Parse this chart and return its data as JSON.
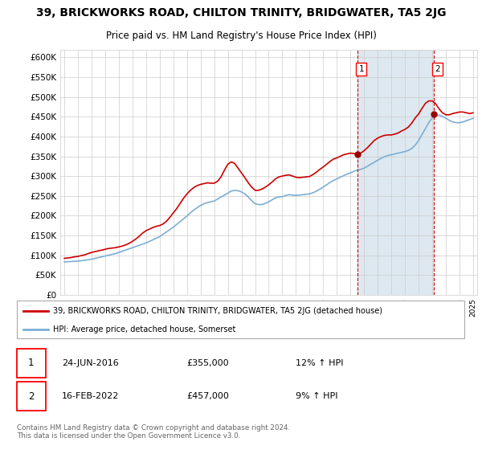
{
  "title": "39, BRICKWORKS ROAD, CHILTON TRINITY, BRIDGWATER, TA5 2JG",
  "subtitle": "Price paid vs. HM Land Registry's House Price Index (HPI)",
  "title_fontsize": 10,
  "subtitle_fontsize": 8.5,
  "ylim": [
    0,
    620000
  ],
  "yticks": [
    0,
    50000,
    100000,
    150000,
    200000,
    250000,
    300000,
    350000,
    400000,
    450000,
    500000,
    550000,
    600000
  ],
  "background_color": "#ffffff",
  "chart_bg_color": "#ffffff",
  "grid_color": "#cccccc",
  "hpi_color": "#7bafd4",
  "price_color": "#cc0000",
  "marker_color": "#990000",
  "dashed_color": "#cc0000",
  "shade_color": "#dde8f0",
  "legend_line1": "39, BRICKWORKS ROAD, CHILTON TRINITY, BRIDGWATER, TA5 2JG (detached house)",
  "legend_line2": "HPI: Average price, detached house, Somerset",
  "note1_date": "24-JUN-2016",
  "note1_price": "£355,000",
  "note1_hpi": "12% ↑ HPI",
  "note2_date": "16-FEB-2022",
  "note2_price": "£457,000",
  "note2_hpi": "9% ↑ HPI",
  "footer": "Contains HM Land Registry data © Crown copyright and database right 2024.\nThis data is licensed under the Open Government Licence v3.0.",
  "sale1_year": 2016.5,
  "sale1_price": 355000,
  "sale2_year": 2022.1,
  "sale2_price": 457000,
  "hpi_x": [
    1995.0,
    1995.25,
    1995.5,
    1995.75,
    1996.0,
    1996.25,
    1996.5,
    1996.75,
    1997.0,
    1997.25,
    1997.5,
    1997.75,
    1998.0,
    1998.25,
    1998.5,
    1998.75,
    1999.0,
    1999.25,
    1999.5,
    1999.75,
    2000.0,
    2000.25,
    2000.5,
    2000.75,
    2001.0,
    2001.25,
    2001.5,
    2001.75,
    2002.0,
    2002.25,
    2002.5,
    2002.75,
    2003.0,
    2003.25,
    2003.5,
    2003.75,
    2004.0,
    2004.25,
    2004.5,
    2004.75,
    2005.0,
    2005.25,
    2005.5,
    2005.75,
    2006.0,
    2006.25,
    2006.5,
    2006.75,
    2007.0,
    2007.25,
    2007.5,
    2007.75,
    2008.0,
    2008.25,
    2008.5,
    2008.75,
    2009.0,
    2009.25,
    2009.5,
    2009.75,
    2010.0,
    2010.25,
    2010.5,
    2010.75,
    2011.0,
    2011.25,
    2011.5,
    2011.75,
    2012.0,
    2012.25,
    2012.5,
    2012.75,
    2013.0,
    2013.25,
    2013.5,
    2013.75,
    2014.0,
    2014.25,
    2014.5,
    2014.75,
    2015.0,
    2015.25,
    2015.5,
    2015.75,
    2016.0,
    2016.25,
    2016.5,
    2016.75,
    2017.0,
    2017.25,
    2017.5,
    2017.75,
    2018.0,
    2018.25,
    2018.5,
    2018.75,
    2019.0,
    2019.25,
    2019.5,
    2019.75,
    2020.0,
    2020.25,
    2020.5,
    2020.75,
    2021.0,
    2021.25,
    2021.5,
    2021.75,
    2022.0,
    2022.25,
    2022.5,
    2022.75,
    2023.0,
    2023.25,
    2023.5,
    2023.75,
    2024.0,
    2024.25,
    2024.5,
    2024.75,
    2025.0
  ],
  "hpi_y": [
    83000,
    83500,
    84000,
    84500,
    85000,
    86000,
    87000,
    88500,
    90000,
    92000,
    94000,
    96000,
    98000,
    100000,
    102000,
    104000,
    107000,
    110000,
    113000,
    116000,
    119000,
    122000,
    125000,
    128000,
    131000,
    135000,
    139000,
    143000,
    147000,
    153000,
    159000,
    165000,
    171000,
    178000,
    185000,
    192000,
    199000,
    207000,
    214000,
    220000,
    226000,
    230000,
    233000,
    235000,
    237000,
    242000,
    247000,
    252000,
    257000,
    262000,
    264000,
    263000,
    260000,
    255000,
    247000,
    238000,
    230000,
    228000,
    228000,
    231000,
    235000,
    240000,
    245000,
    247000,
    248000,
    251000,
    253000,
    252000,
    251000,
    252000,
    253000,
    254000,
    255000,
    258000,
    262000,
    267000,
    272000,
    278000,
    284000,
    289000,
    293000,
    297000,
    301000,
    305000,
    308000,
    312000,
    315000,
    317000,
    320000,
    325000,
    330000,
    335000,
    340000,
    345000,
    349000,
    352000,
    354000,
    356000,
    358000,
    360000,
    362000,
    365000,
    370000,
    378000,
    390000,
    405000,
    420000,
    435000,
    447000,
    453000,
    454000,
    451000,
    446000,
    441000,
    437000,
    435000,
    435000,
    437000,
    440000,
    443000,
    446000
  ],
  "price_x": [
    1995.0,
    1995.25,
    1995.5,
    1995.75,
    1996.0,
    1996.25,
    1996.5,
    1996.75,
    1997.0,
    1997.25,
    1997.5,
    1997.75,
    1998.0,
    1998.25,
    1998.5,
    1998.75,
    1999.0,
    1999.25,
    1999.5,
    1999.75,
    2000.0,
    2000.25,
    2000.5,
    2000.75,
    2001.0,
    2001.25,
    2001.5,
    2001.75,
    2002.0,
    2002.25,
    2002.5,
    2002.75,
    2003.0,
    2003.25,
    2003.5,
    2003.75,
    2004.0,
    2004.25,
    2004.5,
    2004.75,
    2005.0,
    2005.25,
    2005.5,
    2005.75,
    2006.0,
    2006.25,
    2006.5,
    2006.75,
    2007.0,
    2007.25,
    2007.5,
    2007.75,
    2008.0,
    2008.25,
    2008.5,
    2008.75,
    2009.0,
    2009.25,
    2009.5,
    2009.75,
    2010.0,
    2010.25,
    2010.5,
    2010.75,
    2011.0,
    2011.25,
    2011.5,
    2011.75,
    2012.0,
    2012.25,
    2012.5,
    2012.75,
    2013.0,
    2013.25,
    2013.5,
    2013.75,
    2014.0,
    2014.25,
    2014.5,
    2014.75,
    2015.0,
    2015.25,
    2015.5,
    2015.75,
    2016.0,
    2016.25,
    2016.5,
    2016.75,
    2017.0,
    2017.25,
    2017.5,
    2017.75,
    2018.0,
    2018.25,
    2018.5,
    2018.75,
    2019.0,
    2019.25,
    2019.5,
    2019.75,
    2020.0,
    2020.25,
    2020.5,
    2020.75,
    2021.0,
    2021.25,
    2021.5,
    2021.75,
    2022.0,
    2022.25,
    2022.5,
    2022.75,
    2023.0,
    2023.25,
    2023.5,
    2023.75,
    2024.0,
    2024.25,
    2024.5,
    2024.75,
    2025.0
  ],
  "price_y": [
    92000,
    93000,
    94000,
    96000,
    97000,
    99000,
    101000,
    104000,
    107000,
    109000,
    111000,
    113000,
    115000,
    117000,
    118000,
    119000,
    121000,
    123000,
    126000,
    130000,
    135000,
    141000,
    148000,
    156000,
    162000,
    166000,
    170000,
    173000,
    175000,
    179000,
    186000,
    196000,
    207000,
    218000,
    231000,
    244000,
    255000,
    264000,
    271000,
    276000,
    279000,
    281000,
    283000,
    282000,
    282000,
    287000,
    298000,
    315000,
    330000,
    336000,
    332000,
    320000,
    308000,
    296000,
    283000,
    272000,
    264000,
    264000,
    267000,
    272000,
    278000,
    285000,
    293000,
    298000,
    300000,
    302000,
    303000,
    300000,
    297000,
    296000,
    297000,
    298000,
    299000,
    304000,
    310000,
    317000,
    323000,
    330000,
    337000,
    343000,
    346000,
    350000,
    354000,
    356000,
    358000,
    357000,
    355000,
    358000,
    364000,
    372000,
    381000,
    390000,
    396000,
    400000,
    403000,
    404000,
    404000,
    406000,
    409000,
    414000,
    418000,
    424000,
    434000,
    447000,
    457000,
    471000,
    484000,
    490000,
    490000,
    483000,
    470000,
    460000,
    455000,
    455000,
    458000,
    460000,
    462000,
    462000,
    460000,
    458000,
    460000
  ]
}
